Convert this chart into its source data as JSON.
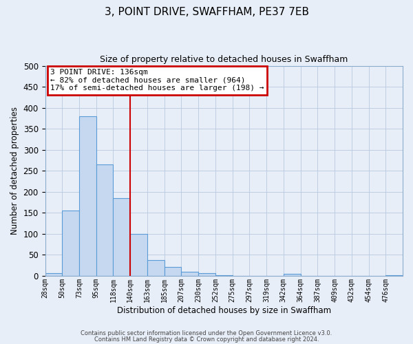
{
  "title": "3, POINT DRIVE, SWAFFHAM, PE37 7EB",
  "subtitle": "Size of property relative to detached houses in Swaffham",
  "xlabel": "Distribution of detached houses by size in Swaffham",
  "ylabel": "Number of detached properties",
  "footer_line1": "Contains HM Land Registry data © Crown copyright and database right 2024.",
  "footer_line2": "Contains public sector information licensed under the Open Government Licence v3.0.",
  "bin_labels": [
    "28sqm",
    "50sqm",
    "73sqm",
    "95sqm",
    "118sqm",
    "140sqm",
    "163sqm",
    "185sqm",
    "207sqm",
    "230sqm",
    "252sqm",
    "275sqm",
    "297sqm",
    "319sqm",
    "342sqm",
    "364sqm",
    "387sqm",
    "409sqm",
    "432sqm",
    "454sqm",
    "476sqm"
  ],
  "bar_heights": [
    6,
    155,
    380,
    265,
    185,
    100,
    37,
    21,
    10,
    7,
    2,
    0,
    0,
    0,
    4,
    0,
    0,
    0,
    0,
    0,
    1
  ],
  "bar_color": "#c5d8f0",
  "bar_edge_color": "#5b9bd5",
  "ylim": [
    0,
    500
  ],
  "yticks": [
    0,
    50,
    100,
    150,
    200,
    250,
    300,
    350,
    400,
    450,
    500
  ],
  "vline_x": 5,
  "vline_color": "#cc0000",
  "annotation_title": "3 POINT DRIVE: 136sqm",
  "annotation_line1": "← 82% of detached houses are smaller (964)",
  "annotation_line2": "17% of semi-detached houses are larger (198) →",
  "annotation_box_color": "#cc0000",
  "background_color": "#e8eef8"
}
